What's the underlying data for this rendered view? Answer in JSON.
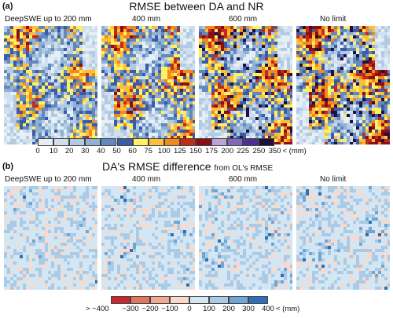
{
  "panel_a": {
    "letter": "(a)",
    "title": "RMSE between DA and NR",
    "labels": [
      "DeepSWE up to 200 mm",
      "400 mm",
      "600 mm",
      "No limit"
    ],
    "colorbar": {
      "ticks": [
        "0",
        "10",
        "20",
        "30",
        "40",
        "50",
        "60",
        "75",
        "100",
        "125",
        "150",
        "175",
        "200",
        "225",
        "250",
        "350"
      ],
      "suffix": "< (mm)",
      "colors": [
        "#e6eef6",
        "#cfdfee",
        "#b3cbe2",
        "#8fb1d4",
        "#6288be",
        "#3b5aa8",
        "#ffef63",
        "#fbbf3a",
        "#f08a1e",
        "#c42a1a",
        "#8a0e12",
        "#b9a5d6",
        "#8268b6",
        "#4e2f8f",
        "#201040"
      ]
    }
  },
  "panel_b": {
    "letter": "(b)",
    "title": "DA's RMSE difference",
    "subtitle": "from OL's RMSE",
    "labels": [
      "DeepSWE up to 200 mm",
      "400 mm",
      "600 mm",
      "No limit"
    ],
    "colorbar": {
      "prefix": "> −400",
      "ticks": [
        "−300",
        "−200",
        "−100",
        "0",
        "100",
        "200",
        "300",
        "400"
      ],
      "suffix": "< (mm)",
      "colors": [
        "#c42a2e",
        "#e0785e",
        "#f2a88c",
        "#fbd8c8",
        "#d5e6f3",
        "#a9cbe7",
        "#6ea7d6",
        "#2f6fb8"
      ]
    }
  }
}
